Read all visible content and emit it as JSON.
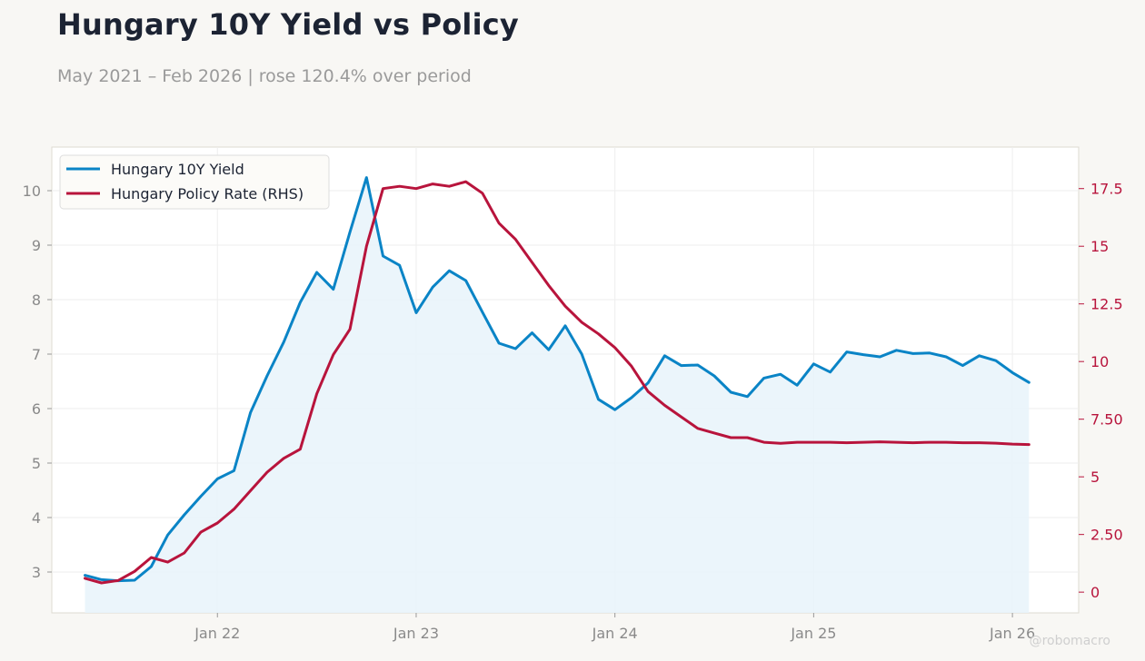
{
  "header": {
    "title": "Hungary 10Y Yield vs Policy",
    "subtitle": "May 2021 – Feb 2026 | rose 120.4% over period"
  },
  "watermark": "@robomacro",
  "colors": {
    "yield": "#0a84c6",
    "policy": "#b8143c",
    "area_fill": "#e8f3fa",
    "grid": "#eeeeee",
    "frame": "#dedbd2"
  },
  "chart_data": {
    "type": "line",
    "x_axis": {
      "start": "2021-05",
      "range": [
        "2021-03",
        "2026-05"
      ],
      "ticks": [
        "Jan 22",
        "Jan 23",
        "Jan 24",
        "Jan 25",
        "Jan 26"
      ],
      "tick_months": [
        "2022-01",
        "2023-01",
        "2024-01",
        "2025-01",
        "2026-01"
      ]
    },
    "y_left": {
      "range": [
        2.25,
        10.8
      ],
      "ticks": [
        "3",
        "4",
        "5",
        "6",
        "7",
        "8",
        "9",
        "10"
      ],
      "tick_values": [
        3,
        4,
        5,
        6,
        7,
        8,
        9,
        10
      ]
    },
    "y_right": {
      "range": [
        -0.9,
        19.3
      ],
      "ticks": [
        "0",
        "2.50",
        "5",
        "7.50",
        "10",
        "12.5",
        "15",
        "17.5"
      ],
      "tick_values": [
        0,
        2.5,
        5,
        7.5,
        10,
        12.5,
        15,
        17.5
      ]
    },
    "grid": true,
    "legend_position": "top-left",
    "series": [
      {
        "name": "Hungary 10Y Yield",
        "axis": "left",
        "area": true,
        "values": [
          2.94,
          2.86,
          2.84,
          2.85,
          3.1,
          3.68,
          4.05,
          4.39,
          4.71,
          4.86,
          5.93,
          6.6,
          7.22,
          7.95,
          8.5,
          8.19,
          9.24,
          10.24,
          8.8,
          8.63,
          7.76,
          8.23,
          8.53,
          8.35,
          7.77,
          7.2,
          7.1,
          7.39,
          7.08,
          7.52,
          7.0,
          6.17,
          5.98,
          6.2,
          6.47,
          6.97,
          6.79,
          6.8,
          6.6,
          6.3,
          6.22,
          6.56,
          6.63,
          6.43,
          6.82,
          6.67,
          7.04,
          6.99,
          6.95,
          7.07,
          7.01,
          7.02,
          6.95,
          6.79,
          6.97,
          6.88,
          6.66,
          6.48
        ]
      },
      {
        "name": "Hungary Policy Rate (RHS)",
        "axis": "right",
        "values": [
          0.6,
          0.4,
          0.5,
          0.9,
          1.5,
          1.3,
          1.7,
          2.6,
          3.0,
          3.6,
          4.4,
          5.2,
          5.8,
          6.2,
          8.6,
          10.3,
          11.4,
          15.0,
          17.5,
          17.6,
          17.5,
          17.7,
          17.6,
          17.8,
          17.3,
          16.0,
          15.3,
          14.3,
          13.3,
          12.4,
          11.7,
          11.2,
          10.6,
          9.8,
          8.7,
          8.1,
          7.6,
          7.1,
          6.9,
          6.7,
          6.7,
          6.5,
          6.45,
          6.5,
          6.5,
          6.5,
          6.48,
          6.5,
          6.52,
          6.5,
          6.48,
          6.5,
          6.5,
          6.48,
          6.48,
          6.46,
          6.42,
          6.4
        ]
      }
    ]
  }
}
